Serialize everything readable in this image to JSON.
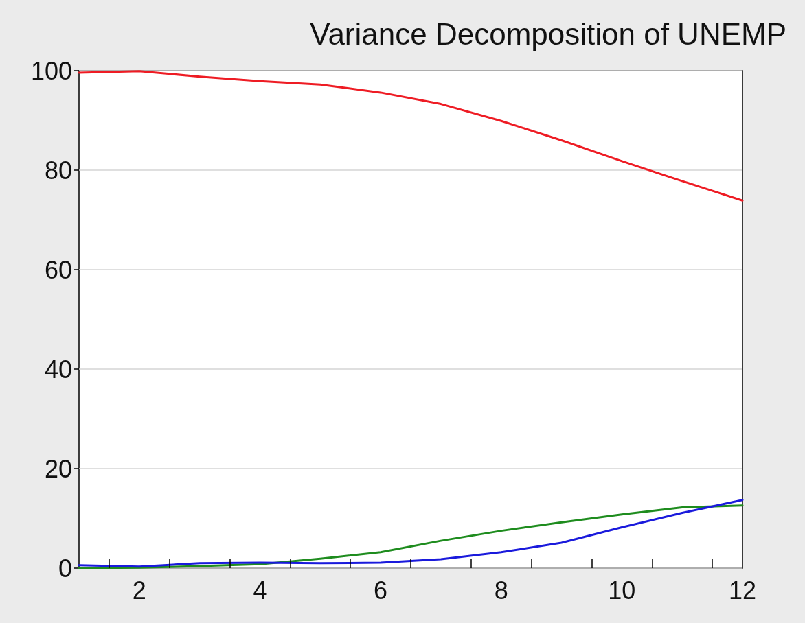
{
  "chart_data": {
    "type": "line",
    "title": "Variance Decomposition of UNEMP",
    "x": [
      1,
      2,
      3,
      4,
      5,
      6,
      7,
      8,
      9,
      10,
      11,
      12
    ],
    "series": [
      {
        "color": "#ee1c24",
        "values": [
          99.6,
          99.9,
          98.8,
          97.9,
          97.2,
          95.6,
          93.3,
          89.9,
          86.0,
          81.8,
          77.8,
          73.9
        ]
      },
      {
        "color": "#1e8c1e",
        "values": [
          0.0,
          0.1,
          0.4,
          0.8,
          1.9,
          3.2,
          5.5,
          7.5,
          9.2,
          10.8,
          12.2,
          12.6
        ]
      },
      {
        "color": "#1a1adc",
        "values": [
          0.6,
          0.3,
          1.0,
          1.1,
          1.0,
          1.1,
          1.8,
          3.2,
          5.1,
          8.2,
          11.1,
          13.7
        ]
      }
    ],
    "xlim": [
      1,
      12
    ],
    "xticks": [
      {
        "value": 1.5,
        "label": null
      },
      {
        "value": 2,
        "label": "2"
      },
      {
        "value": 2.5,
        "label": null
      },
      {
        "value": 3.5,
        "label": null
      },
      {
        "value": 4,
        "label": "4"
      },
      {
        "value": 4.5,
        "label": null
      },
      {
        "value": 5.5,
        "label": null
      },
      {
        "value": 6,
        "label": "6"
      },
      {
        "value": 6.5,
        "label": null
      },
      {
        "value": 7.5,
        "label": null
      },
      {
        "value": 8,
        "label": "8"
      },
      {
        "value": 8.5,
        "label": null
      },
      {
        "value": 9.5,
        "label": null
      },
      {
        "value": 10,
        "label": "10"
      },
      {
        "value": 10.5,
        "label": null
      },
      {
        "value": 11.5,
        "label": null
      },
      {
        "value": 12,
        "label": "12"
      }
    ],
    "ylim": [
      0,
      100
    ],
    "yticks": [
      0,
      20,
      40,
      60,
      80,
      100
    ],
    "grid": "y",
    "marker": "none",
    "line_style": "solid"
  }
}
